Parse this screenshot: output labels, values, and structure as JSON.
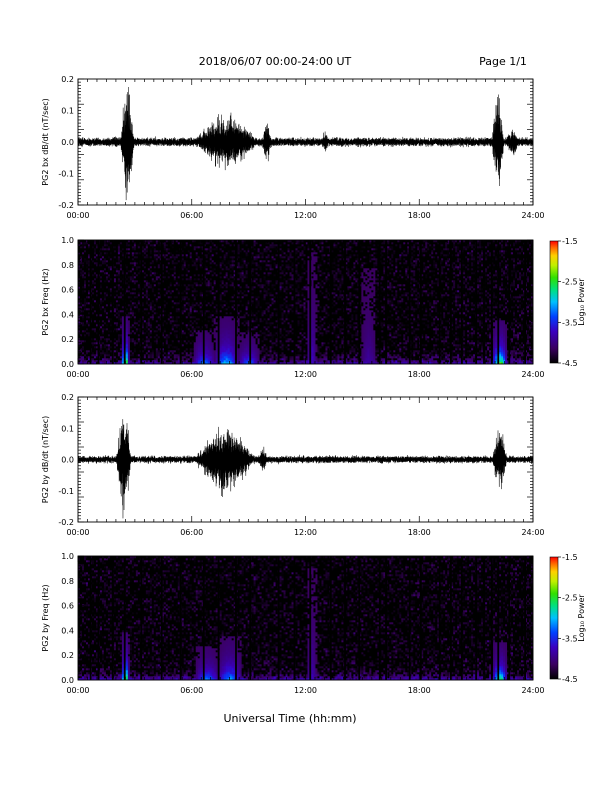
{
  "header": {
    "date_range": "2018/06/07  00:00-24:00 UT",
    "page": "Page 1/1"
  },
  "chart_data": [
    {
      "type": "line",
      "title": "",
      "ylabel": "PG2 bx dB/dt (nT/sec)",
      "xlabel": "",
      "xlim": [
        "00:00",
        "24:00"
      ],
      "x_ticks": [
        "00:00",
        "06:00",
        "12:00",
        "18:00",
        "24:00"
      ],
      "ylim": [
        -0.2,
        0.2
      ],
      "y_ticks": [
        "0.2",
        "0.1",
        "0.0",
        "-0.1",
        "-0.2"
      ],
      "baseline_amplitude": 0.012,
      "bursts": [
        {
          "start": "02:12",
          "end": "03:00",
          "peak": 0.2,
          "clipped": true
        },
        {
          "start": "06:00",
          "end": "09:40",
          "peak": 0.1
        },
        {
          "start": "09:40",
          "end": "10:15",
          "peak": 0.07
        },
        {
          "start": "12:50",
          "end": "13:15",
          "peak": 0.04
        },
        {
          "start": "21:48",
          "end": "22:30",
          "peak": 0.18
        },
        {
          "start": "22:30",
          "end": "23:20",
          "peak": 0.05
        }
      ]
    },
    {
      "type": "heatmap",
      "title": "",
      "ylabel": "PG2 bx Freq (Hz)",
      "xlabel": "",
      "xlim": [
        "00:00",
        "24:00"
      ],
      "x_ticks": [
        "00:00",
        "06:00",
        "12:00",
        "18:00",
        "24:00"
      ],
      "ylim": [
        0.0,
        1.0
      ],
      "y_ticks": [
        "1.0",
        "0.8",
        "0.6",
        "0.4",
        "0.2",
        "0.0"
      ],
      "colorbar": {
        "label": "Log₁₀ Power",
        "ticks": [
          "-1.5",
          "-2.5",
          "-3.5",
          "-4.5"
        ],
        "range": [
          -4.5,
          -1.5
        ]
      },
      "gap_times": [
        "00:40",
        "01:05",
        "01:50",
        "02:28",
        "03:20",
        "04:25",
        "05:25",
        "06:38",
        "07:25",
        "08:20",
        "09:05",
        "10:35",
        "11:25",
        "12:15",
        "13:20",
        "14:05",
        "14:50",
        "15:55",
        "16:15",
        "17:30",
        "18:05",
        "19:05",
        "19:40",
        "20:15",
        "21:00",
        "21:25",
        "21:50",
        "22:10",
        "22:45",
        "23:35"
      ],
      "enhancements": [
        {
          "time": "02:30",
          "width_h": 0.4,
          "max_freq": 0.28,
          "peak_power": -1.7
        },
        {
          "time": "06:40",
          "width_h": 1.2,
          "max_freq": 0.2,
          "peak_power": -3.0
        },
        {
          "time": "07:50",
          "width_h": 1.3,
          "max_freq": 0.28,
          "peak_power": -2.8
        },
        {
          "time": "09:00",
          "width_h": 1.2,
          "max_freq": 0.18,
          "peak_power": -3.1
        },
        {
          "time": "12:20",
          "width_h": 0.5,
          "max_freq": 0.65,
          "peak_power": -3.6
        },
        {
          "time": "15:20",
          "width_h": 0.8,
          "max_freq": 0.55,
          "peak_power": -3.8
        },
        {
          "time": "22:15",
          "width_h": 0.8,
          "max_freq": 0.25,
          "peak_power": -2.0
        }
      ]
    },
    {
      "type": "line",
      "title": "",
      "ylabel": "PG2 by dB/dt (nT/sec)",
      "xlabel": "",
      "xlim": [
        "00:00",
        "24:00"
      ],
      "x_ticks": [
        "00:00",
        "06:00",
        "12:00",
        "18:00",
        "24:00"
      ],
      "ylim": [
        -0.2,
        0.2
      ],
      "y_ticks": [
        "0.2",
        "0.1",
        "0.0",
        "-0.1",
        "-0.2"
      ],
      "baseline_amplitude": 0.01,
      "bursts": [
        {
          "start": "02:00",
          "end": "02:50",
          "peak": 0.2,
          "clipped": true
        },
        {
          "start": "06:00",
          "end": "09:30",
          "peak": 0.12
        },
        {
          "start": "09:30",
          "end": "10:00",
          "peak": 0.05
        },
        {
          "start": "21:50",
          "end": "22:40",
          "peak": 0.12
        }
      ]
    },
    {
      "type": "heatmap",
      "title": "",
      "ylabel": "PG2 by Freq (Hz)",
      "xlabel": "Universal Time (hh:mm)",
      "xlim": [
        "00:00",
        "24:00"
      ],
      "x_ticks": [
        "00:00",
        "06:00",
        "12:00",
        "18:00",
        "24:00"
      ],
      "ylim": [
        0.0,
        1.0
      ],
      "y_ticks": [
        "1.0",
        "0.8",
        "0.6",
        "0.4",
        "0.2",
        "0.0"
      ],
      "colorbar": {
        "label": "Log₁₀ Power",
        "ticks": [
          "-1.5",
          "-2.5",
          "-3.5",
          "-4.5"
        ],
        "range": [
          -4.5,
          -1.5
        ]
      },
      "gap_times": [
        "00:40",
        "01:05",
        "01:50",
        "02:28",
        "03:20",
        "04:25",
        "05:25",
        "06:38",
        "07:25",
        "08:20",
        "09:05",
        "10:35",
        "11:25",
        "12:15",
        "13:20",
        "14:05",
        "14:50",
        "15:55",
        "16:15",
        "17:30",
        "18:05",
        "19:05",
        "19:40",
        "20:15",
        "21:00",
        "21:25",
        "21:50",
        "22:10",
        "22:45",
        "23:35"
      ],
      "enhancements": [
        {
          "time": "02:30",
          "width_h": 0.4,
          "max_freq": 0.28,
          "peak_power": -1.8
        },
        {
          "time": "06:50",
          "width_h": 1.3,
          "max_freq": 0.2,
          "peak_power": -3.0
        },
        {
          "time": "08:00",
          "width_h": 1.3,
          "max_freq": 0.25,
          "peak_power": -2.9
        },
        {
          "time": "12:20",
          "width_h": 0.5,
          "max_freq": 0.65,
          "peak_power": -3.7
        },
        {
          "time": "22:15",
          "width_h": 0.8,
          "max_freq": 0.22,
          "peak_power": -2.3
        }
      ]
    }
  ]
}
